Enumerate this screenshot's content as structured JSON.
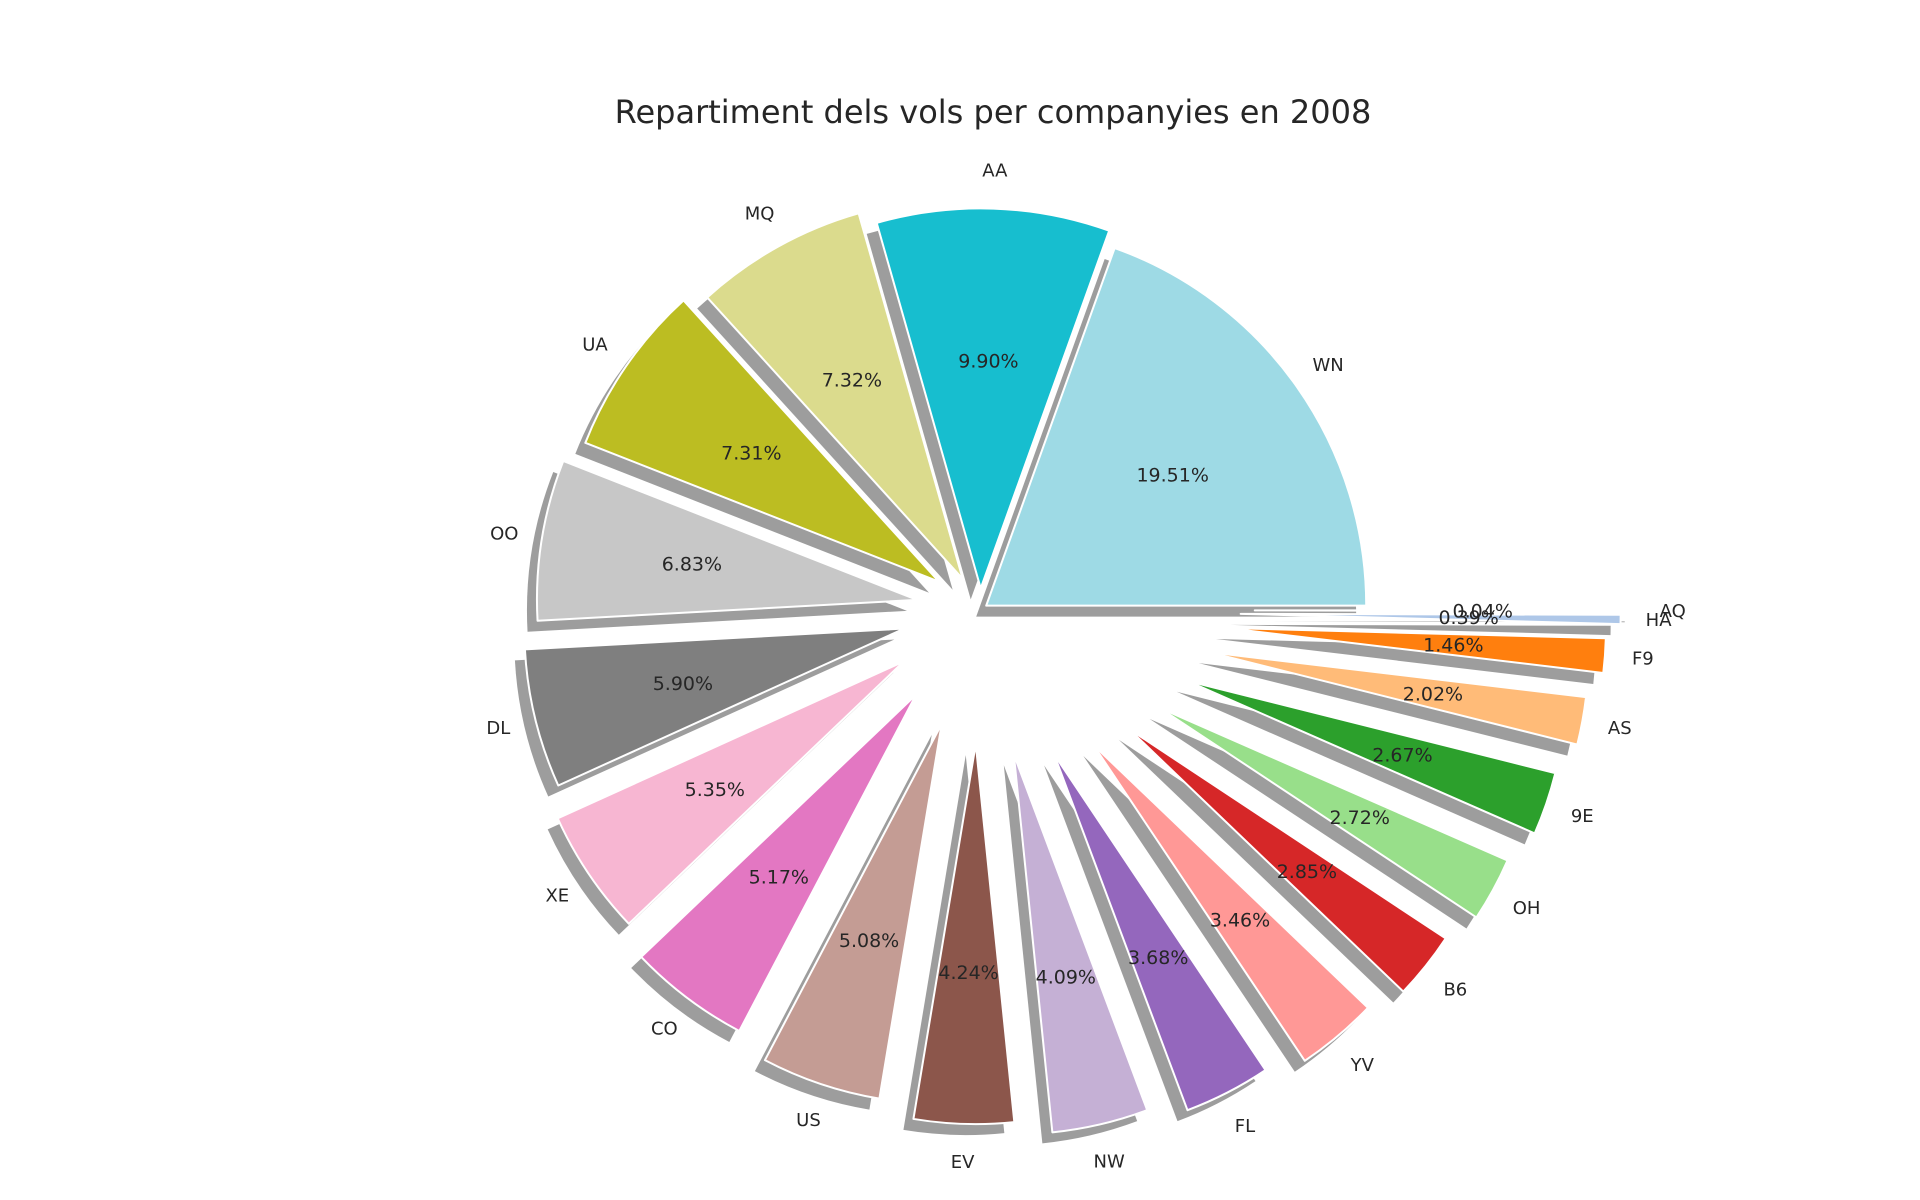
{
  "chart_data": {
    "type": "pie",
    "title": "Repartiment dels vols per companyies en 2008",
    "start_angle_deg": 0,
    "direction": "counterclockwise",
    "exploded": true,
    "shadow": true,
    "slices": [
      {
        "label": "WN",
        "value": 19.51,
        "pct_label": "19.51%",
        "color": "#9edae5"
      },
      {
        "label": "AA",
        "value": 9.9,
        "pct_label": "9.90%",
        "color": "#17becf"
      },
      {
        "label": "MQ",
        "value": 7.32,
        "pct_label": "7.32%",
        "color": "#dbdb8d"
      },
      {
        "label": "UA",
        "value": 7.31,
        "pct_label": "7.31%",
        "color": "#bcbd22"
      },
      {
        "label": "OO",
        "value": 6.83,
        "pct_label": "6.83%",
        "color": "#c7c7c7"
      },
      {
        "label": "DL",
        "value": 5.9,
        "pct_label": "5.90%",
        "color": "#7f7f7f"
      },
      {
        "label": "XE",
        "value": 5.35,
        "pct_label": "5.35%",
        "color": "#f7b6d2"
      },
      {
        "label": "CO",
        "value": 5.17,
        "pct_label": "5.17%",
        "color": "#e377c2"
      },
      {
        "label": "US",
        "value": 5.08,
        "pct_label": "5.08%",
        "color": "#c49c94"
      },
      {
        "label": "EV",
        "value": 4.24,
        "pct_label": "4.24%",
        "color": "#8c564b"
      },
      {
        "label": "NW",
        "value": 4.09,
        "pct_label": "4.09%",
        "color": "#c5b0d5"
      },
      {
        "label": "FL",
        "value": 3.68,
        "pct_label": "3.68%",
        "color": "#9467bd"
      },
      {
        "label": "YV",
        "value": 3.46,
        "pct_label": "3.46%",
        "color": "#ff9896"
      },
      {
        "label": "B6",
        "value": 2.85,
        "pct_label": "2.85%",
        "color": "#d62728"
      },
      {
        "label": "OH",
        "value": 2.72,
        "pct_label": "2.72%",
        "color": "#98df8a"
      },
      {
        "label": "9E",
        "value": 2.67,
        "pct_label": "2.67%",
        "color": "#2ca02c"
      },
      {
        "label": "AS",
        "value": 2.02,
        "pct_label": "2.02%",
        "color": "#ffbb78"
      },
      {
        "label": "F9",
        "value": 1.46,
        "pct_label": "1.46%",
        "color": "#ff7f0e"
      },
      {
        "label": "HA",
        "value": 0.39,
        "pct_label": "0.39%",
        "color": "#aec7e8"
      },
      {
        "label": "AQ",
        "value": 0.04,
        "pct_label": "0.04%",
        "color": "#1f77b4"
      }
    ]
  }
}
